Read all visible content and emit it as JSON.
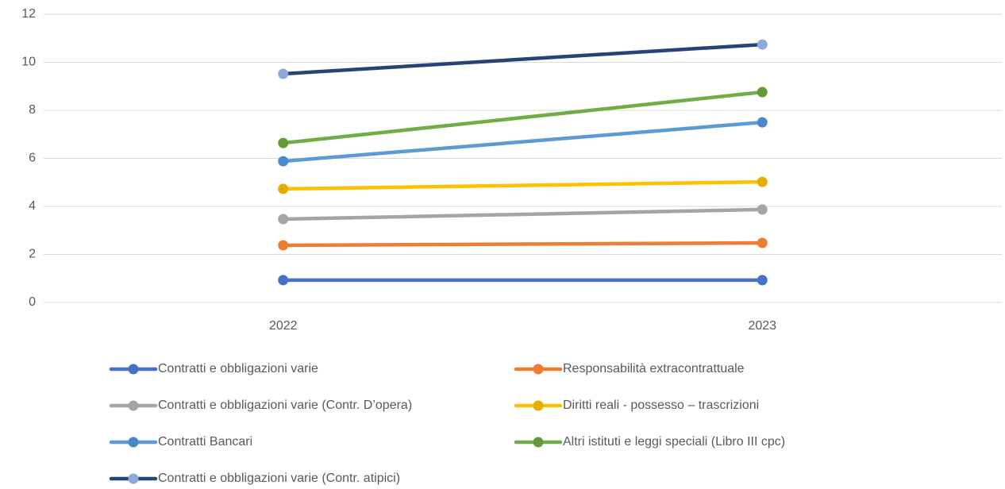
{
  "chart_data": {
    "type": "line",
    "categories": [
      "2022",
      "2023"
    ],
    "series": [
      {
        "name": "Contratti e obbligazioni varie",
        "color": "#4472c4",
        "marker_color": "#4472c4",
        "values": [
          0.93,
          0.93
        ]
      },
      {
        "name": "Responsabilità extracontrattuale",
        "color": "#ed7d31",
        "marker_color": "#ed7d31",
        "values": [
          2.38,
          2.48
        ]
      },
      {
        "name": "Contratti e obbligazioni varie (Contr. D’opera)",
        "color": "#a5a5a5",
        "marker_color": "#a5a5a5",
        "values": [
          3.47,
          3.87
        ]
      },
      {
        "name": "Diritti reali - possesso – trascrizioni",
        "color": "#ffc000",
        "marker_color": "#e5ac00",
        "values": [
          4.73,
          5.02
        ]
      },
      {
        "name": "Contratti Bancari",
        "color": "#5b9bd5",
        "marker_color": "#4a89c6",
        "values": [
          5.88,
          7.5
        ]
      },
      {
        "name": "Altri istituti e leggi speciali (Libro III cpc)",
        "color": "#70ad47",
        "marker_color": "#5f9c38",
        "values": [
          6.64,
          8.76
        ]
      },
      {
        "name": "Contratti e obbligazioni varie (Contr. atipici)",
        "color": "#264478",
        "marker_color": "#8fa8dc",
        "values": [
          9.52,
          10.74
        ]
      }
    ],
    "ylim": [
      0,
      12
    ],
    "yticks": [
      0,
      2,
      4,
      6,
      8,
      10,
      12
    ],
    "grid": true,
    "legend": "bottom"
  }
}
